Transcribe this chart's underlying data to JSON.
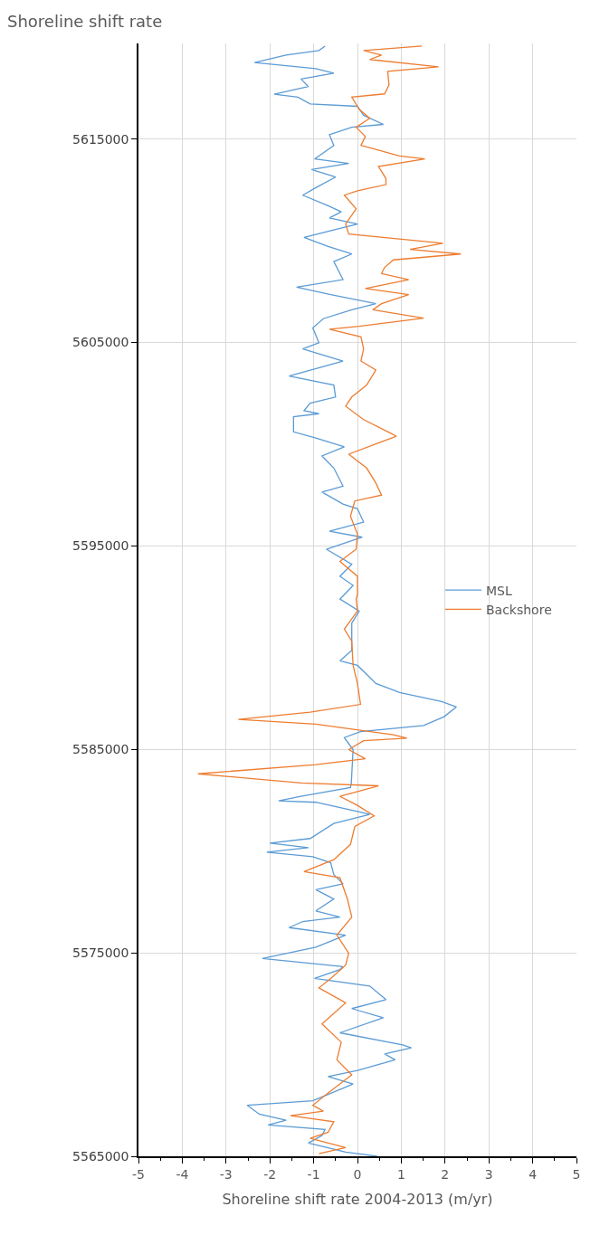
{
  "chart_data": {
    "type": "line",
    "title": "Shoreline shift rate",
    "xlabel": "Shoreline shift rate 2004-2013 (m/yr)",
    "xlim": [
      -5,
      5
    ],
    "xticks": [
      -5,
      -4,
      -3,
      -2,
      -1,
      0,
      1,
      2,
      3,
      4,
      5
    ],
    "ylim": [
      5565000,
      5619700
    ],
    "yticks": [
      5565000,
      5575000,
      5585000,
      5595000,
      5605000,
      5615000
    ],
    "grid": true,
    "legend": "right",
    "series": [
      {
        "name": "MSL",
        "color": "#5b9bd5",
        "x": [
          -0.74,
          -0.88,
          -1.63,
          -2.35,
          -0.95,
          -0.54,
          -1.29,
          -1.12,
          -1.9,
          -1.36,
          -1.08,
          0.0,
          0.14,
          0.59,
          -0.13,
          -0.64,
          -0.54,
          -0.98,
          -0.2,
          -1.05,
          -0.5,
          -0.95,
          -1.25,
          -0.67,
          -0.37,
          -0.64,
          0.0,
          -1.22,
          -0.67,
          -0.13,
          -0.54,
          -0.33,
          -1.39,
          -0.61,
          0.42,
          -0.13,
          -0.78,
          -1.02,
          -0.88,
          -1.25,
          -0.33,
          -1.56,
          -0.54,
          -0.5,
          -1.08,
          -1.22,
          -0.88,
          -1.46,
          -1.46,
          -0.95,
          -0.3,
          -0.81,
          -0.54,
          -0.33,
          -0.81,
          -0.33,
          0.0,
          0.14,
          -0.64,
          0.11,
          -0.71,
          -0.13,
          -0.4,
          -0.1,
          -0.33,
          -0.4,
          0.04,
          -0.13,
          -0.13,
          -0.13,
          -0.4,
          0.0,
          0.21,
          0.42,
          0.96,
          1.92,
          2.26,
          1.98,
          1.51,
          0.07,
          -0.3,
          -0.1,
          -0.14,
          -0.16,
          -1.29,
          -1.8,
          -0.95,
          0.0,
          0.28,
          -0.54,
          -1.08,
          -2.0,
          -1.12,
          -2.07,
          -1.02,
          -0.61,
          -0.54,
          -0.33,
          -0.95,
          -0.54,
          -0.95,
          -0.4,
          -1.25,
          -1.56,
          -0.27,
          -0.95,
          -2.17,
          -0.33,
          -0.4,
          -0.98,
          0.28,
          0.65,
          -0.13,
          0.59,
          -0.4,
          1.03,
          1.23,
          0.62,
          0.86,
          0.0,
          -0.67,
          -0.1,
          -1.02,
          -2.52,
          -2.24,
          -1.63,
          -2.04,
          -0.74,
          -0.81,
          -1.12,
          -0.27,
          0.45
        ],
        "values": [
          5619570,
          5619350,
          5619130,
          5618760,
          5618460,
          5618240,
          5617950,
          5617580,
          5617200,
          5617060,
          5616730,
          5616610,
          5616170,
          5615720,
          5615580,
          5615210,
          5614690,
          5614020,
          5613800,
          5613500,
          5613130,
          5612610,
          5612240,
          5611720,
          5611420,
          5611120,
          5610820,
          5610170,
          5609720,
          5609350,
          5608980,
          5608090,
          5607720,
          5607350,
          5606910,
          5606610,
          5606170,
          5605720,
          5604990,
          5604690,
          5604090,
          5603350,
          5602910,
          5602320,
          5602020,
          5601650,
          5601500,
          5601350,
          5600610,
          5600310,
          5599870,
          5599420,
          5598830,
          5597940,
          5597650,
          5597060,
          5596830,
          5596170,
          5595720,
          5595430,
          5594840,
          5594100,
          5593510,
          5593060,
          5592540,
          5592390,
          5591800,
          5591210,
          5590460,
          5589870,
          5589350,
          5589130,
          5588690,
          5588240,
          5587800,
          5587350,
          5587090,
          5586610,
          5586170,
          5585870,
          5585580,
          5584990,
          5583350,
          5583130,
          5582690,
          5582470,
          5582400,
          5581950,
          5581800,
          5581360,
          5580620,
          5580390,
          5580170,
          5579950,
          5579730,
          5579430,
          5578840,
          5578390,
          5578100,
          5577650,
          5577060,
          5576760,
          5576540,
          5576240,
          5575870,
          5575280,
          5574720,
          5574320,
          5574180,
          5573740,
          5573370,
          5572700,
          5572260,
          5571810,
          5571070,
          5570480,
          5570330,
          5570030,
          5569740,
          5569220,
          5568920,
          5568550,
          5567730,
          5567510,
          5567070,
          5566770,
          5566540,
          5566320,
          5566020,
          5565650,
          5565210,
          5565000
        ]
      },
      {
        "name": "Backshore",
        "color": "#ed7d31",
        "x": [
          1.47,
          0.14,
          0.55,
          0.28,
          1.85,
          0.69,
          0.72,
          0.62,
          -0.13,
          0.04,
          0.28,
          -0.03,
          0.18,
          0.08,
          0.96,
          1.54,
          0.48,
          0.65,
          0.65,
          0.0,
          -0.3,
          -0.03,
          -0.27,
          -0.2,
          1.95,
          1.2,
          2.36,
          0.82,
          0.62,
          0.55,
          1.17,
          0.18,
          1.17,
          0.55,
          0.35,
          1.51,
          0.04,
          -0.64,
          0.08,
          0.14,
          0.08,
          0.42,
          0.21,
          -0.13,
          -0.27,
          0.14,
          0.76,
          0.89,
          0.42,
          -0.2,
          0.21,
          0.42,
          0.55,
          -0.06,
          -0.16,
          0.0,
          -0.03,
          -0.4,
          0.0,
          0.0,
          -0.03,
          0.0,
          -0.3,
          -0.13,
          -0.1,
          0.0,
          0.07,
          -1.08,
          -2.72,
          -0.95,
          0.82,
          1.13,
          0.14,
          -0.2,
          0.18,
          -0.95,
          -3.64,
          -1.29,
          0.48,
          -0.4,
          0.0,
          0.38,
          -0.06,
          -0.16,
          -0.54,
          -1.22,
          -0.4,
          -0.23,
          -0.13,
          -0.47,
          -0.2,
          -0.27,
          -0.61,
          -0.88,
          -0.27,
          -0.81,
          -0.37,
          -0.47,
          -0.13,
          -0.67,
          -1.02,
          -0.78,
          -1.53,
          -0.54,
          -0.67,
          -1.08,
          -0.27,
          -0.88
        ],
        "values": [
          5619570,
          5619350,
          5619130,
          5618910,
          5618550,
          5618330,
          5617660,
          5617220,
          5617060,
          5616460,
          5616020,
          5615580,
          5615130,
          5614690,
          5614170,
          5614020,
          5613650,
          5613060,
          5612760,
          5612460,
          5612240,
          5611570,
          5610820,
          5610330,
          5609880,
          5609580,
          5609350,
          5609060,
          5608690,
          5608390,
          5608090,
          5607650,
          5607350,
          5606910,
          5606610,
          5606200,
          5605800,
          5605650,
          5605280,
          5604690,
          5604090,
          5603650,
          5602910,
          5602320,
          5601870,
          5601210,
          5600540,
          5600390,
          5600020,
          5599510,
          5598830,
          5598090,
          5597500,
          5597210,
          5596460,
          5595580,
          5594840,
          5594240,
          5593510,
          5592620,
          5592390,
          5591800,
          5590910,
          5590320,
          5589130,
          5588240,
          5587210,
          5586830,
          5586470,
          5586240,
          5585720,
          5585550,
          5585430,
          5584990,
          5584540,
          5584250,
          5583800,
          5583350,
          5583210,
          5582690,
          5582250,
          5581730,
          5581210,
          5580330,
          5579580,
          5578990,
          5578690,
          5577650,
          5576760,
          5575870,
          5574980,
          5574400,
          5573740,
          5573280,
          5572540,
          5571500,
          5570610,
          5569740,
          5569000,
          5568110,
          5567510,
          5567220,
          5567000,
          5566700,
          5566180,
          5565880,
          5565430,
          5565130
        ]
      }
    ]
  }
}
